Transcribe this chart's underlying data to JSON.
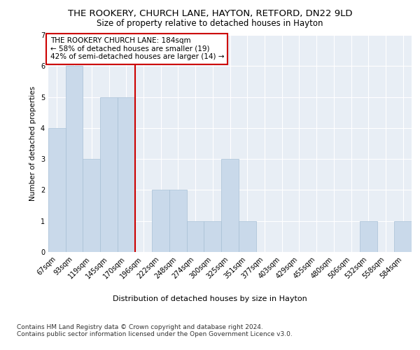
{
  "title1": "THE ROOKERY, CHURCH LANE, HAYTON, RETFORD, DN22 9LD",
  "title2": "Size of property relative to detached houses in Hayton",
  "xlabel": "Distribution of detached houses by size in Hayton",
  "ylabel": "Number of detached properties",
  "categories": [
    "67sqm",
    "93sqm",
    "119sqm",
    "145sqm",
    "170sqm",
    "196sqm",
    "222sqm",
    "248sqm",
    "274sqm",
    "300sqm",
    "325sqm",
    "351sqm",
    "377sqm",
    "403sqm",
    "429sqm",
    "455sqm",
    "480sqm",
    "506sqm",
    "532sqm",
    "558sqm",
    "584sqm"
  ],
  "values": [
    4,
    6,
    3,
    5,
    5,
    0,
    2,
    2,
    1,
    1,
    3,
    1,
    0,
    0,
    0,
    0,
    0,
    0,
    1,
    0,
    1
  ],
  "bar_color": "#c9d9ea",
  "bar_edge_color": "#a8c0d6",
  "vline_x_index": 5,
  "vline_color": "#cc0000",
  "annotation_line1": "THE ROOKERY CHURCH LANE: 184sqm",
  "annotation_line2": "← 58% of detached houses are smaller (19)",
  "annotation_line3": "42% of semi-detached houses are larger (14) →",
  "annotation_box_color": "#ffffff",
  "annotation_box_edge": "#cc0000",
  "ylim": [
    0,
    7
  ],
  "yticks": [
    0,
    1,
    2,
    3,
    4,
    5,
    6,
    7
  ],
  "bg_color": "#e8eef5",
  "grid_color": "#ffffff",
  "footnote": "Contains HM Land Registry data © Crown copyright and database right 2024.\nContains public sector information licensed under the Open Government Licence v3.0.",
  "title1_fontsize": 9.5,
  "title2_fontsize": 8.5,
  "xlabel_fontsize": 8,
  "ylabel_fontsize": 7.5,
  "tick_fontsize": 7,
  "annotation_fontsize": 7.5,
  "footnote_fontsize": 6.5
}
